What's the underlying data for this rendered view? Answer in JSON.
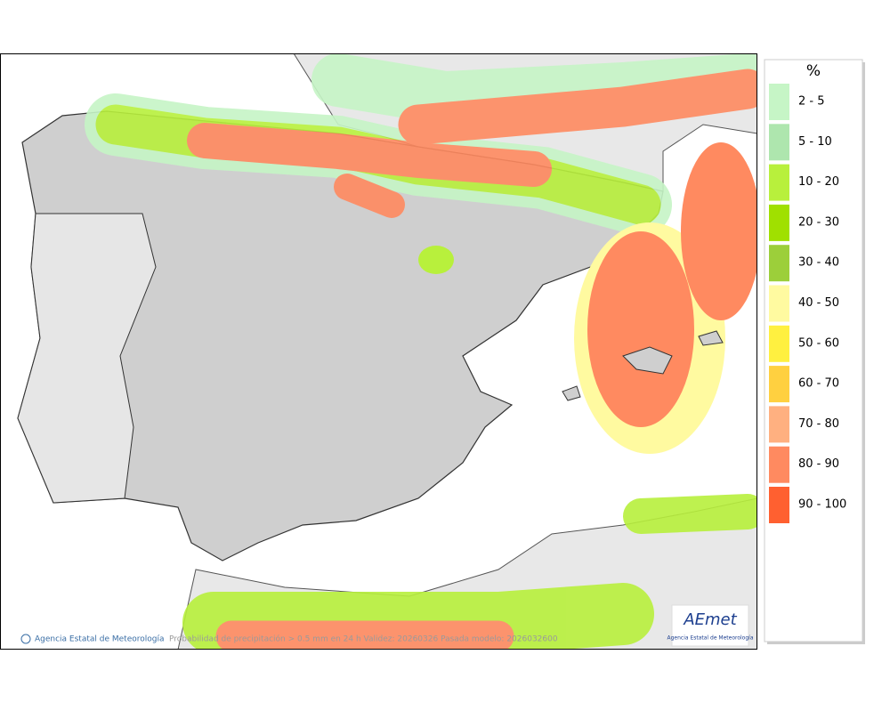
{
  "legend": {
    "title": "%",
    "items": [
      {
        "label": "2 - 5",
        "color": "#c6f5c6"
      },
      {
        "label": "5 - 10",
        "color": "#aee6ae"
      },
      {
        "label": "10 - 20",
        "color": "#b8f03c"
      },
      {
        "label": "20 - 30",
        "color": "#a0e000"
      },
      {
        "label": "30 - 40",
        "color": "#9ccf3a"
      },
      {
        "label": "40 - 50",
        "color": "#fffaa0"
      },
      {
        "label": "50 - 60",
        "color": "#fff040"
      },
      {
        "label": "60 - 70",
        "color": "#ffd040"
      },
      {
        "label": "70 - 80",
        "color": "#ffb080"
      },
      {
        "label": "80 - 90",
        "color": "#ff8a60"
      },
      {
        "label": "90 - 100",
        "color": "#ff6030"
      }
    ]
  },
  "footer": {
    "credit": "Agencia Estatal de Meteorología",
    "caption": "Probabilidad de precipitación > 0.5 mm en 24 h Validez: 20260326 Pasada modelo: 2026032600"
  },
  "logo": {
    "name": "AEmet",
    "subtitle": "Agencia Estatal de Meteorología"
  }
}
